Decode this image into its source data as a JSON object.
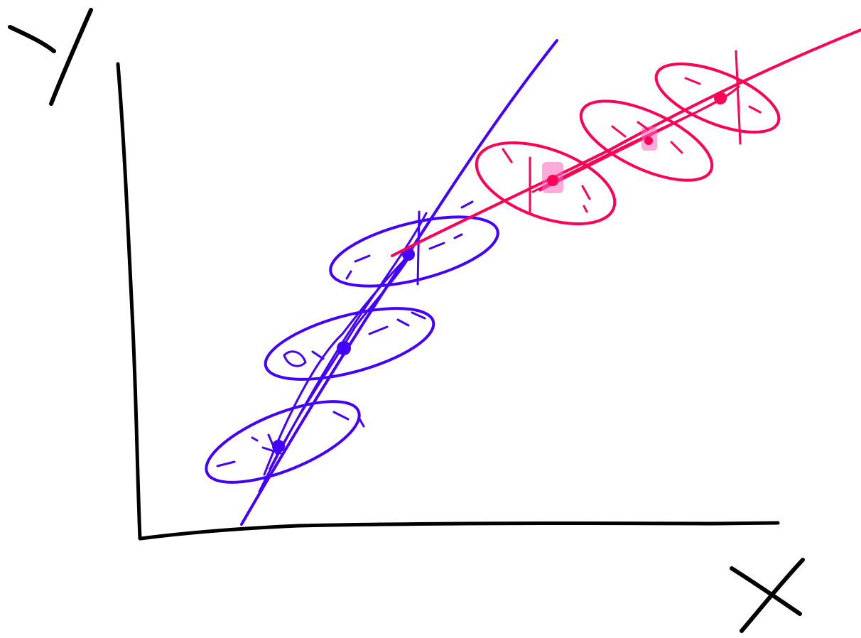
{
  "diagram": {
    "axes": {
      "x_label": "X",
      "y_label": "Y",
      "axis_color": "#000000"
    },
    "series": [
      {
        "id": "blue",
        "color": "#4400ff",
        "cluster_count": 3,
        "trend": "steep"
      },
      {
        "id": "red",
        "color": "#ff0055",
        "highlight_color": "#ff66bb",
        "cluster_count": 3,
        "trend": "shallow"
      }
    ]
  }
}
